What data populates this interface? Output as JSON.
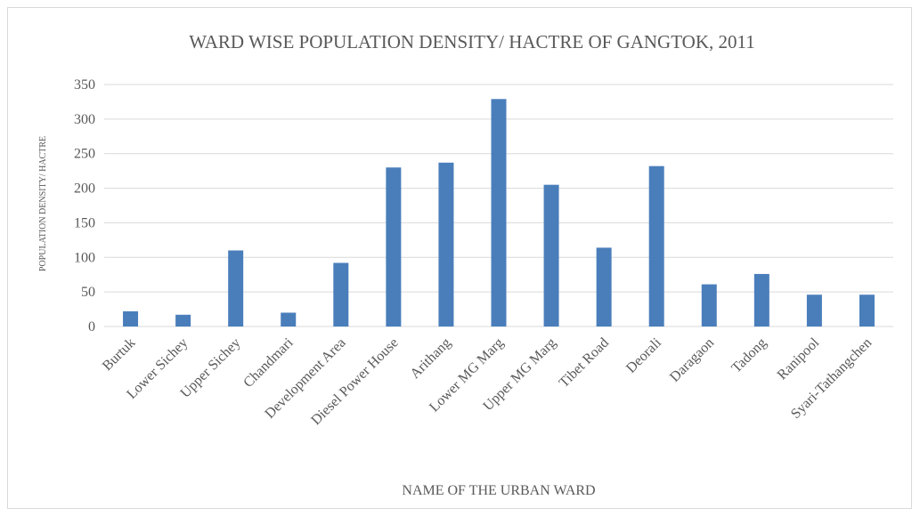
{
  "chart_data": {
    "type": "bar",
    "title": "WARD WISE POPULATION DENSITY/ HACTRE OF GANGTOK, 2011",
    "xlabel": "NAME OF THE URBAN WARD",
    "ylabel": "POPULATION DENSITY/ HACTRE",
    "categories": [
      "Burtuk",
      "Lower Sichey",
      "Upper Sichey",
      "Chandmari",
      "Development Area",
      "Diesel Power House",
      "Arithang",
      "Lower MG Marg",
      "Upper MG Marg",
      "Tibet Road",
      "Deorali",
      "Daragaon",
      "Tadong",
      "Ranipool",
      "Syari-Tathangchen"
    ],
    "values": [
      22,
      17,
      110,
      20,
      92,
      230,
      237,
      329,
      205,
      114,
      232,
      61,
      76,
      46,
      46
    ],
    "ylim": [
      0,
      350
    ],
    "yticks": [
      0,
      50,
      100,
      150,
      200,
      250,
      300,
      350
    ],
    "grid": true,
    "legend": "none",
    "bar_color": "#4a7ebb",
    "grid_color": "#d9d9d9",
    "text_color": "#595959"
  }
}
